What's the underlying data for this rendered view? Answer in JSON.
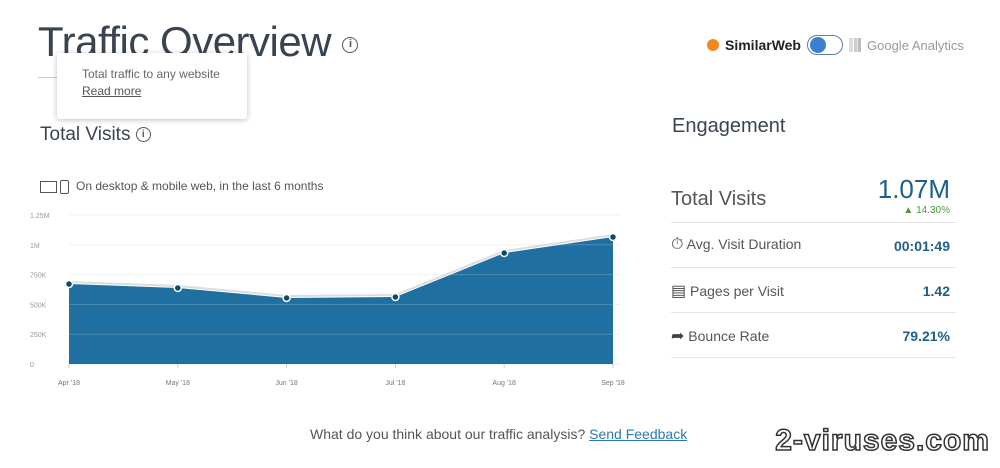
{
  "header": {
    "title": "Traffic Overview",
    "source_left": "SimilarWeb",
    "source_right": "Google Analytics",
    "toggle_on": "left"
  },
  "tooltip": {
    "text": "Total traffic to any website",
    "link": "Read more"
  },
  "visits": {
    "title": "Total Visits",
    "subtitle": "On desktop & mobile web, in the last 6 months"
  },
  "chart_data": {
    "type": "area",
    "categories": [
      "Apr '18",
      "May '18",
      "Jun '18",
      "Jul '18",
      "Aug '18",
      "Sep '18"
    ],
    "values": [
      671000,
      638000,
      554000,
      562000,
      931000,
      1065000
    ],
    "yticks": [
      "0",
      "250K",
      "500K",
      "750K",
      "1M",
      "1.25M"
    ],
    "ylim": [
      0,
      1250000
    ],
    "grid": true,
    "color": "#1f6fa0"
  },
  "engagement": {
    "title": "Engagement",
    "total_label": "Total Visits",
    "total_value": "1.07M",
    "total_change": "14.30%",
    "rows": [
      {
        "label": "Avg. Visit Duration",
        "value": "00:01:49",
        "icon": "stopwatch-icon"
      },
      {
        "label": "Pages per Visit",
        "value": "1.42",
        "icon": "pages-icon"
      },
      {
        "label": "Bounce Rate",
        "value": "79.21%",
        "icon": "bounce-arrow-icon"
      }
    ]
  },
  "feedback": {
    "text": "What do you think about our traffic analysis?",
    "link": "Send Feedback"
  },
  "watermark": "2-viruses.com"
}
